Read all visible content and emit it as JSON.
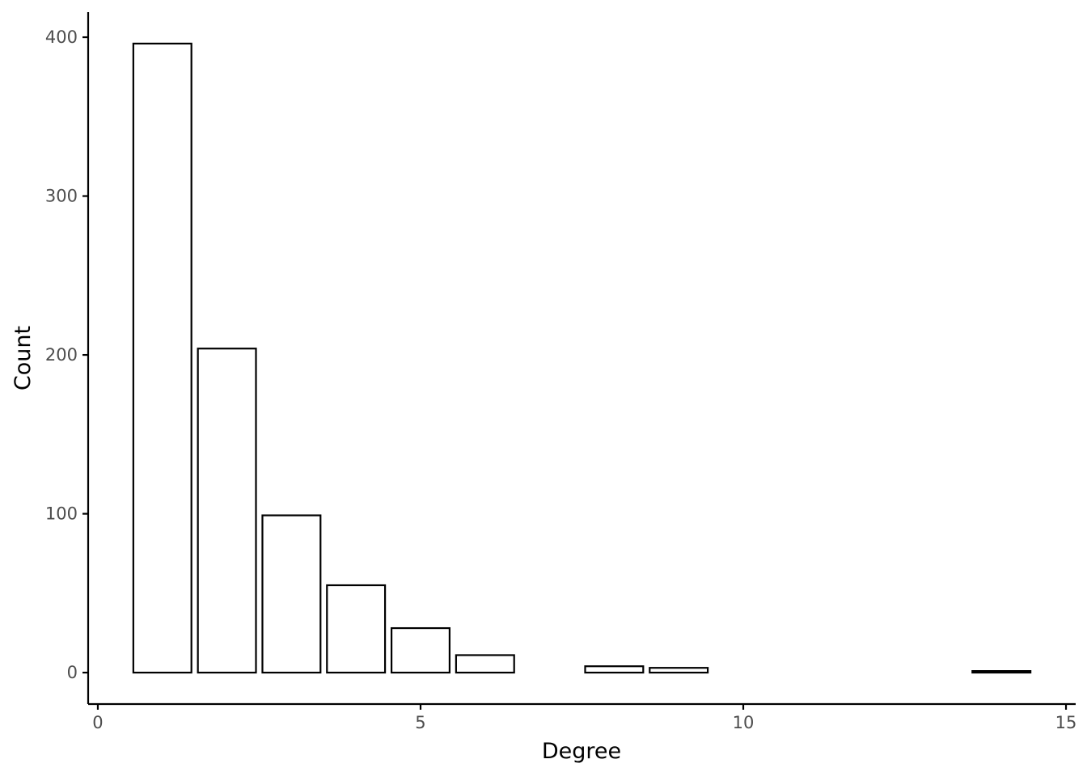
{
  "chart_data": {
    "type": "bar",
    "xlabel": "Degree",
    "ylabel": "Count",
    "x": [
      1,
      2,
      3,
      4,
      5,
      6,
      8,
      9,
      14
    ],
    "values": [
      396,
      204,
      99,
      55,
      28,
      11,
      4,
      3,
      1
    ],
    "bar_width": 0.9,
    "xlim": [
      -0.15,
      15.15
    ],
    "ylim": [
      -19.8,
      415.8
    ],
    "xticks": [
      0,
      5,
      10,
      15
    ],
    "yticks": [
      0,
      100,
      200,
      300,
      400
    ],
    "grid": false,
    "legend": "none",
    "colors": {
      "bar_fill": "#ffffff",
      "bar_stroke": "#000000",
      "axis": "#000000",
      "tick_label": "#4d4d4d"
    }
  }
}
